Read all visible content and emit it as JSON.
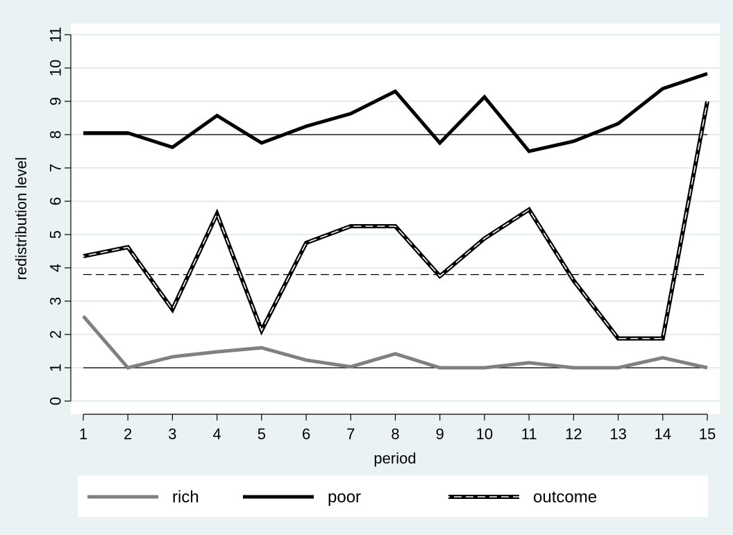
{
  "chart_data": {
    "type": "line",
    "xlabel": "period",
    "ylabel": "redistribution level",
    "x": [
      1,
      2,
      3,
      4,
      5,
      6,
      7,
      8,
      9,
      10,
      11,
      12,
      13,
      14,
      15
    ],
    "xlim": [
      1,
      15
    ],
    "ylim": [
      0,
      11
    ],
    "yticks": [
      0,
      1,
      2,
      3,
      4,
      5,
      6,
      7,
      8,
      9,
      10,
      11
    ],
    "grid": true,
    "legend_position": "bottom",
    "series": [
      {
        "name": "rich",
        "color": "#808080",
        "style": "solid",
        "values": [
          2.55,
          1.0,
          1.33,
          1.48,
          1.6,
          1.23,
          1.03,
          1.42,
          1.0,
          1.0,
          1.15,
          1.0,
          1.0,
          1.3,
          1.0
        ]
      },
      {
        "name": "poor",
        "color": "#000000",
        "style": "solid",
        "values": [
          8.05,
          8.05,
          7.62,
          8.57,
          7.75,
          8.25,
          8.63,
          9.3,
          7.75,
          9.13,
          7.5,
          7.8,
          8.33,
          9.38,
          9.83
        ]
      },
      {
        "name": "outcome",
        "color": "#000000",
        "style": "dashed",
        "values": [
          4.35,
          4.62,
          2.75,
          5.62,
          2.12,
          4.75,
          5.25,
          5.25,
          3.75,
          4.88,
          5.75,
          3.62,
          1.88,
          1.88,
          9.0
        ]
      }
    ],
    "reference_lines": [
      {
        "y": 8,
        "style": "solid"
      },
      {
        "y": 1,
        "style": "solid"
      },
      {
        "y": 3.8,
        "style": "dashed"
      }
    ]
  }
}
